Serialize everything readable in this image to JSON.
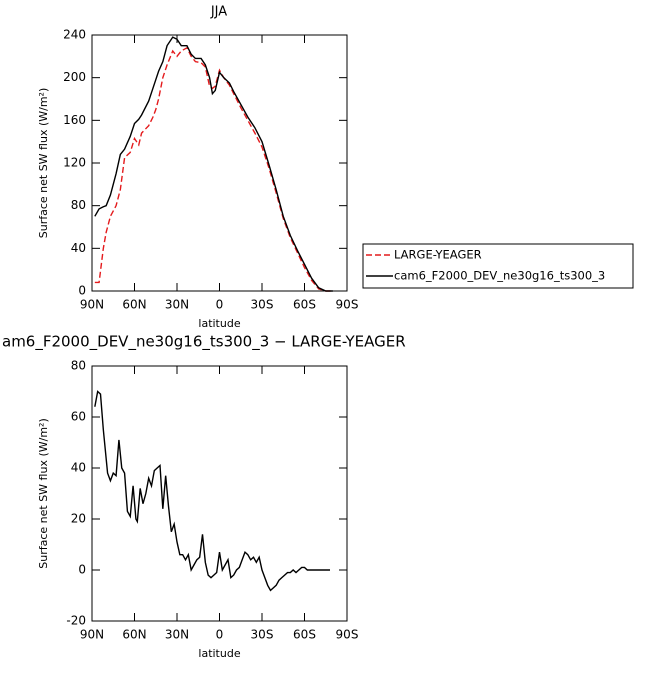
{
  "chart_data": [
    {
      "type": "line",
      "title": "JJA",
      "xlabel": "latitude",
      "ylabel": "Surface net SW flux (W/m²)",
      "x": [
        88,
        85,
        82,
        80,
        77,
        73,
        70,
        67,
        63,
        60,
        57,
        55,
        50,
        47,
        45,
        43,
        40,
        37,
        33,
        30,
        27,
        23,
        20,
        17,
        13,
        10,
        7,
        5,
        3,
        0,
        -3,
        -7,
        -10,
        -15,
        -20,
        -25,
        -30,
        -35,
        -40,
        -45,
        -50,
        -55,
        -60,
        -65,
        -70,
        -75,
        -80
      ],
      "series": [
        {
          "name": "LARGE-YEAGER",
          "color": "#e41a1c",
          "style": "dashed",
          "values": [
            8,
            8,
            40,
            55,
            70,
            80,
            95,
            125,
            130,
            143,
            137,
            148,
            155,
            163,
            170,
            180,
            200,
            212,
            225,
            220,
            225,
            228,
            220,
            215,
            214,
            210,
            192,
            190,
            192,
            207,
            200,
            193,
            185,
            172,
            160,
            148,
            135,
            115,
            92,
            68,
            50,
            36,
            22,
            10,
            2,
            0,
            0
          ]
        },
        {
          "name": "cam6_F2000_DEV_ne30g16_ts300_3",
          "color": "#000000",
          "style": "solid",
          "values": [
            70,
            77,
            79,
            80,
            90,
            110,
            128,
            133,
            145,
            157,
            161,
            165,
            178,
            190,
            198,
            206,
            215,
            230,
            238,
            236,
            230,
            230,
            222,
            218,
            218,
            212,
            200,
            185,
            188,
            205,
            200,
            195,
            187,
            175,
            163,
            153,
            140,
            118,
            95,
            70,
            52,
            38,
            25,
            12,
            3,
            0,
            0
          ]
        }
      ],
      "xlim": [
        90,
        -90
      ],
      "xticks": [
        {
          "value": 90,
          "label": "90N"
        },
        {
          "value": 60,
          "label": "60N"
        },
        {
          "value": 30,
          "label": "30N"
        },
        0,
        {
          "value": -30,
          "label": "30S"
        },
        {
          "value": -60,
          "label": "60S"
        },
        {
          "value": -90,
          "label": "90S"
        }
      ],
      "ylim": [
        0,
        240
      ],
      "yticks": [
        0,
        40,
        80,
        120,
        160,
        200,
        240
      ],
      "legend": "right"
    },
    {
      "type": "line",
      "title": "am6_F2000_DEV_ne30g16_ts300_3 − LARGE-YEAGER",
      "xlabel": "latitude",
      "ylabel": "Surface net SW flux (W/m²)",
      "x": [
        88,
        86,
        84,
        82,
        79,
        77,
        75,
        73,
        71,
        69,
        67,
        65,
        63,
        61,
        59,
        58,
        56,
        54,
        52,
        50,
        48,
        46,
        44,
        42,
        40,
        38,
        36,
        34,
        32,
        30,
        28,
        26,
        24,
        22,
        20,
        18,
        16,
        14,
        12,
        10,
        8,
        6,
        4,
        2,
        0,
        -2,
        -4,
        -6,
        -8,
        -10,
        -12,
        -14,
        -16,
        -18,
        -20,
        -22,
        -24,
        -26,
        -28,
        -30,
        -32,
        -34,
        -36,
        -38,
        -40,
        -42,
        -44,
        -46,
        -48,
        -50,
        -52,
        -54,
        -56,
        -58,
        -60,
        -62,
        -65,
        -70,
        -78
      ],
      "series": [
        {
          "name": null,
          "color": "#000000",
          "style": "solid",
          "values": [
            64,
            70,
            69,
            55,
            38,
            35,
            38,
            37,
            51,
            40,
            38,
            23,
            21,
            33,
            20,
            19,
            32,
            26,
            30,
            36,
            33,
            39,
            40,
            41,
            24,
            37,
            25,
            15,
            18,
            11,
            6,
            6,
            4,
            6,
            0,
            2,
            4,
            5,
            14,
            3,
            -2,
            -3,
            -2,
            -1,
            7,
            0,
            2,
            4,
            -3,
            -2,
            0,
            1,
            4,
            7,
            6,
            4,
            5,
            3,
            5,
            0,
            -3,
            -6,
            -8,
            -7,
            -6,
            -4,
            -3,
            -2,
            -1,
            -1,
            0,
            -1,
            0,
            1,
            1,
            0,
            0,
            0,
            0
          ]
        }
      ],
      "xlim": [
        90,
        -90
      ],
      "xticks": [
        {
          "value": 90,
          "label": "90N"
        },
        {
          "value": 60,
          "label": "60N"
        },
        {
          "value": 30,
          "label": "30N"
        },
        0,
        {
          "value": -30,
          "label": "30S"
        },
        {
          "value": -60,
          "label": "60S"
        },
        {
          "value": -90,
          "label": "90S"
        }
      ],
      "ylim": [
        -20,
        80
      ],
      "yticks": [
        -20,
        0,
        20,
        40,
        60,
        80
      ]
    }
  ]
}
